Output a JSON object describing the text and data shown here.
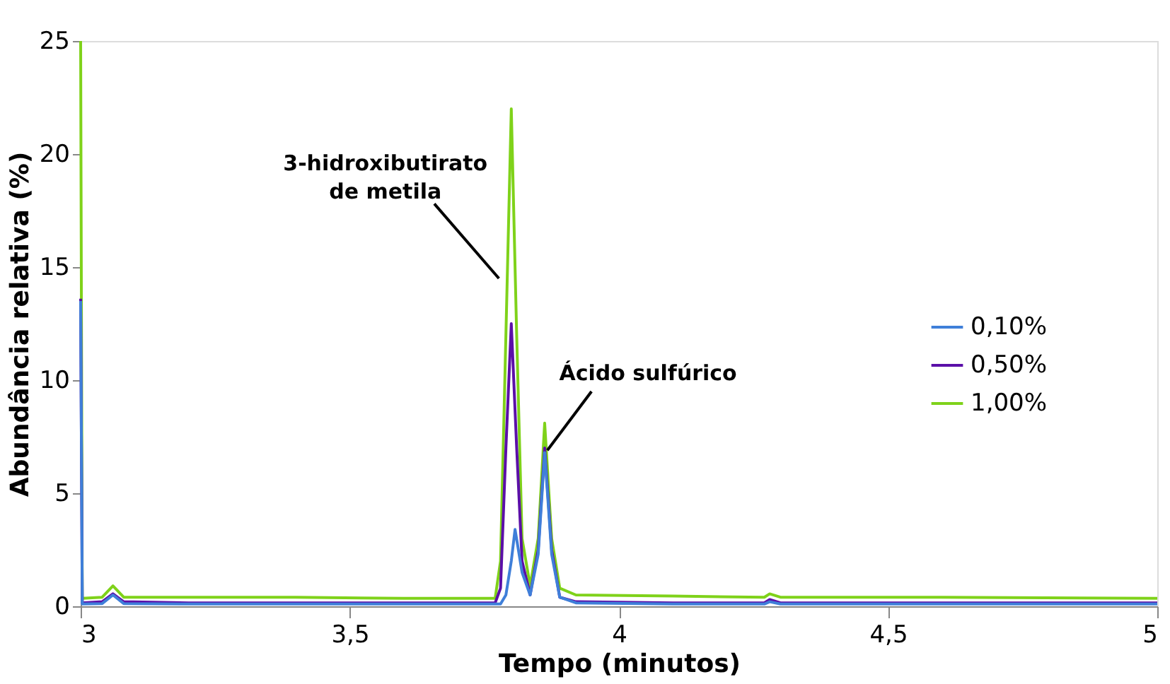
{
  "chart_data": {
    "type": "line",
    "xlabel": "Tempo (minutos)",
    "ylabel": "Abundância relativa (%)",
    "xlim": [
      3,
      5
    ],
    "xticks": [
      3,
      {
        "value": 3.5,
        "label": "3,5"
      },
      4,
      {
        "value": 4.5,
        "label": "4,5"
      },
      5
    ],
    "ylim": [
      0,
      25
    ],
    "yticks": [
      0,
      5,
      10,
      15,
      20,
      25
    ],
    "grid": false,
    "legend": "right",
    "marker": "none",
    "line_style": "solid",
    "series": [
      {
        "name": "0,10%",
        "color": "#3f7fd9",
        "x": [
          3.0,
          3.003,
          3.04,
          3.06,
          3.08,
          3.2,
          3.4,
          3.6,
          3.78,
          3.79,
          3.8,
          3.807,
          3.82,
          3.835,
          3.85,
          3.862,
          3.875,
          3.89,
          3.92,
          4.1,
          4.27,
          4.28,
          4.3,
          4.6,
          5.0
        ],
        "values": [
          13.5,
          0.1,
          0.12,
          0.5,
          0.12,
          0.1,
          0.1,
          0.1,
          0.1,
          0.5,
          2,
          3.4,
          1.5,
          0.5,
          2.3,
          6.8,
          2.3,
          0.4,
          0.15,
          0.1,
          0.1,
          0.2,
          0.1,
          0.1,
          0.1
        ]
      },
      {
        "name": "0,50%",
        "color": "#5b0fa8",
        "x": [
          3.0,
          3.003,
          3.04,
          3.06,
          3.08,
          3.2,
          3.4,
          3.6,
          3.77,
          3.78,
          3.79,
          3.8,
          3.81,
          3.82,
          3.835,
          3.85,
          3.862,
          3.875,
          3.89,
          3.92,
          4.1,
          4.27,
          4.28,
          4.3,
          4.6,
          5.0
        ],
        "values": [
          13.6,
          0.15,
          0.2,
          0.55,
          0.2,
          0.15,
          0.15,
          0.15,
          0.15,
          0.8,
          7,
          12.5,
          7,
          2,
          0.5,
          2.5,
          7.0,
          2.5,
          0.4,
          0.2,
          0.15,
          0.15,
          0.3,
          0.15,
          0.15,
          0.15
        ]
      },
      {
        "name": "1,00%",
        "color": "#7fd21a",
        "x": [
          3.0,
          3.003,
          3.04,
          3.06,
          3.08,
          3.2,
          3.4,
          3.6,
          3.77,
          3.78,
          3.79,
          3.8,
          3.81,
          3.82,
          3.835,
          3.85,
          3.862,
          3.875,
          3.89,
          3.92,
          4.1,
          4.27,
          4.28,
          4.3,
          4.6,
          5.0
        ],
        "values": [
          25,
          0.35,
          0.4,
          0.9,
          0.4,
          0.4,
          0.4,
          0.35,
          0.35,
          2,
          12,
          22,
          12,
          3,
          0.9,
          3,
          8.1,
          3,
          0.8,
          0.5,
          0.45,
          0.4,
          0.55,
          0.4,
          0.4,
          0.35
        ]
      }
    ],
    "annotations": [
      {
        "text": "3-hidroxibutirato\nde metila",
        "x": 3.777,
        "y": 14.5
      },
      {
        "text": "Ácido sulfúrico",
        "x": 3.867,
        "y": 6.9
      }
    ]
  }
}
